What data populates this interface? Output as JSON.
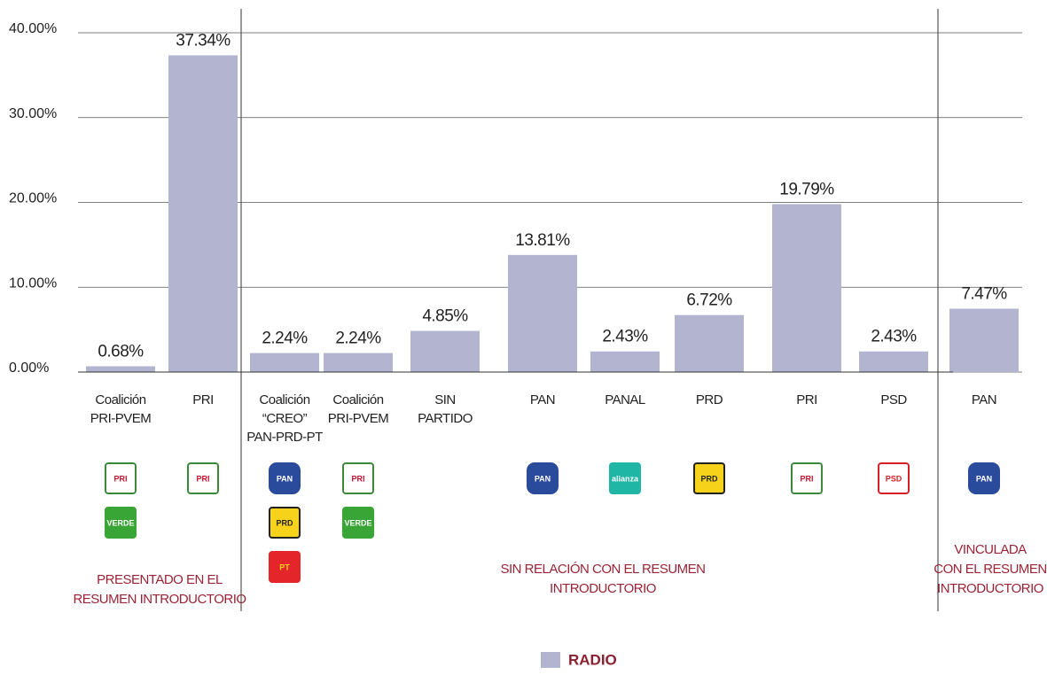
{
  "chart_data": {
    "type": "bar",
    "categories": [
      "Coalición PRI-PVEM",
      "PRI",
      "Coalición “CREO” PAN-PRD-PT",
      "Coalición PRI-PVEM",
      "SIN PARTIDO",
      "PAN",
      "PANAL",
      "PRD",
      "PRI",
      "PSD",
      "PAN"
    ],
    "series": [
      {
        "name": "RADIO",
        "color": "#b3b4cf",
        "values": [
          0.68,
          37.34,
          2.24,
          2.24,
          4.85,
          13.81,
          2.43,
          6.72,
          19.79,
          2.43,
          7.47
        ],
        "value_labels": [
          "0.68%",
          "37.34%",
          "2.24%",
          "2.24%",
          "4.85%",
          "13.81%",
          "2.43%",
          "6.72%",
          "19.79%",
          "2.43%",
          "7.47%"
        ]
      }
    ],
    "ylim": [
      0,
      40
    ],
    "yticks": [
      {
        "value": 0,
        "label": "0.00%"
      },
      {
        "value": 10,
        "label": "10.00%"
      },
      {
        "value": 20,
        "label": "20.00%"
      },
      {
        "value": 30,
        "label": "30.00%"
      },
      {
        "value": 40,
        "label": "40.00%"
      }
    ],
    "grid": true,
    "logos": [
      [
        "PRI",
        "VERDE"
      ],
      [
        "PRI"
      ],
      [
        "PAN",
        "PRD",
        "PT"
      ],
      [
        "PRI",
        "VERDE"
      ],
      [],
      [
        "PAN"
      ],
      [
        "alianza"
      ],
      [
        "PRD"
      ],
      [
        "PRI"
      ],
      [
        "PSD"
      ],
      [
        "PAN"
      ]
    ],
    "annotations": [
      [
        "PRESENTADO EN EL",
        "RESUMEN INTRODUCTORIO"
      ],
      [
        "SIN RELACIÓN CON EL RESUMEN",
        "INTRODUCTORIO"
      ],
      [
        "VINCULADA",
        "CON EL RESUMEN",
        "INTRODUCTORIO"
      ]
    ],
    "legend": "bottom"
  }
}
